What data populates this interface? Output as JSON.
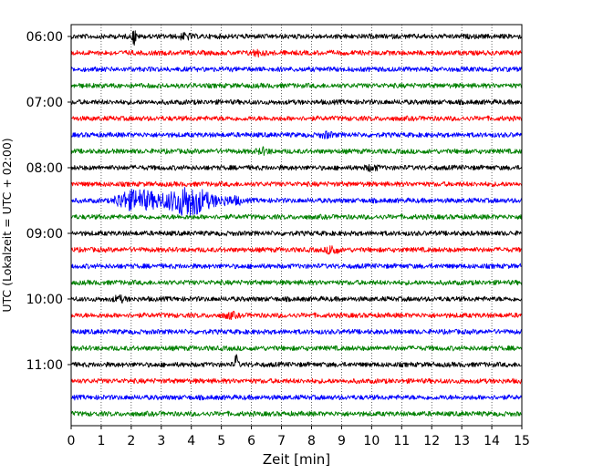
{
  "chart_data": {
    "type": "line",
    "title": "",
    "xlabel": "Zeit  [min]",
    "ylabel": "UTC (Lokalzeit = UTC + 02:00)",
    "xlim": [
      0,
      15
    ],
    "x_ticks": [
      "0",
      "1",
      "2",
      "3",
      "4",
      "5",
      "6",
      "7",
      "8",
      "9",
      "10",
      "11",
      "12",
      "13",
      "14",
      "15"
    ],
    "y_tick_labels": [
      "06:00",
      "07:00",
      "08:00",
      "09:00",
      "10:00",
      "11:00"
    ],
    "row_interval_minutes": 15,
    "first_row": "06:00",
    "row_count": 24,
    "row_color_cycle": [
      "#000000",
      "#ff0000",
      "#0000ff",
      "#008000"
    ],
    "grid": "vertical dotted",
    "series": [
      {
        "row": "06:00",
        "color": "black",
        "events": [
          {
            "minute": 2.1,
            "amplitude": "spike"
          },
          {
            "minute": 3.8,
            "amplitude": "small"
          }
        ]
      },
      {
        "row": "06:15",
        "color": "red",
        "events": [
          {
            "minute": 6.2,
            "amplitude": "small"
          }
        ]
      },
      {
        "row": "06:30",
        "color": "blue",
        "events": []
      },
      {
        "row": "06:45",
        "color": "green",
        "events": []
      },
      {
        "row": "07:00",
        "color": "black",
        "events": []
      },
      {
        "row": "07:15",
        "color": "red",
        "events": []
      },
      {
        "row": "07:30",
        "color": "blue",
        "events": [
          {
            "minute": 8.5,
            "amplitude": "small"
          }
        ]
      },
      {
        "row": "07:45",
        "color": "green",
        "events": [
          {
            "minute": 6.4,
            "amplitude": "small"
          }
        ]
      },
      {
        "row": "08:00",
        "color": "black",
        "events": [
          {
            "minute": 10.0,
            "amplitude": "small"
          }
        ]
      },
      {
        "row": "08:15",
        "color": "red",
        "events": []
      },
      {
        "row": "08:30",
        "color": "blue",
        "events": [
          {
            "minute": 1.5,
            "amplitude": "earthquake-start"
          },
          {
            "minute": 3.9,
            "amplitude": "earthquake-peak"
          }
        ]
      },
      {
        "row": "08:45",
        "color": "green",
        "events": []
      },
      {
        "row": "09:00",
        "color": "black",
        "events": []
      },
      {
        "row": "09:15",
        "color": "red",
        "events": [
          {
            "minute": 8.7,
            "amplitude": "medium"
          }
        ]
      },
      {
        "row": "09:30",
        "color": "blue",
        "events": []
      },
      {
        "row": "09:45",
        "color": "green",
        "events": []
      },
      {
        "row": "10:00",
        "color": "black",
        "events": [
          {
            "minute": 1.6,
            "amplitude": "small"
          }
        ]
      },
      {
        "row": "10:15",
        "color": "red",
        "events": [
          {
            "minute": 5.3,
            "amplitude": "small"
          }
        ]
      },
      {
        "row": "10:30",
        "color": "blue",
        "events": []
      },
      {
        "row": "10:45",
        "color": "green",
        "events": []
      },
      {
        "row": "11:00",
        "color": "black",
        "events": [
          {
            "minute": 5.5,
            "amplitude": "spike"
          }
        ]
      },
      {
        "row": "11:15",
        "color": "red",
        "events": []
      },
      {
        "row": "11:30",
        "color": "blue",
        "events": []
      },
      {
        "row": "11:45",
        "color": "green",
        "events": []
      }
    ]
  }
}
